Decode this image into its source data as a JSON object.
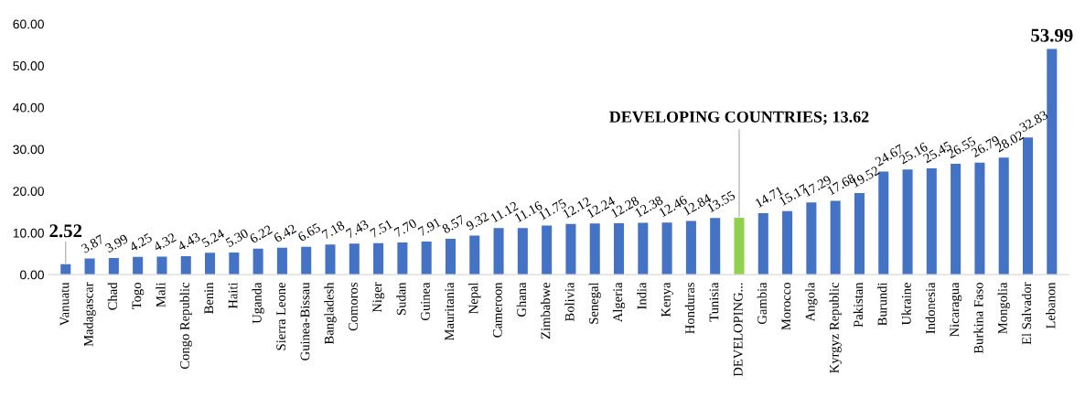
{
  "chart_data": {
    "type": "bar",
    "categories": [
      "Vanuatu",
      "Madagascar",
      "Chad",
      "Togo",
      "Mali",
      "Congo Republic",
      "Benin",
      "Haiti",
      "Uganda",
      "Sierra Leone",
      "Guinea-Bissau",
      "Bangladesh",
      "Comoros",
      "Niger",
      "Sudan",
      "Guinea",
      "Mauritania",
      "Nepal",
      "Cameroon",
      "Ghana",
      "Zimbabwe",
      "Bolivia",
      "Senegal",
      "Algeria",
      "India",
      "Kenya",
      "Honduras",
      "Tunisia",
      "DEVELOPING...",
      "Gambia",
      "Morocco",
      "Angola",
      "Kyrgyz Republic",
      "Pakistan",
      "Burundi",
      "Ukraine",
      "Indonesia",
      "Nicaragua",
      "Burkina Faso",
      "Mongolia",
      "El Salvador",
      "Lebanon"
    ],
    "values": [
      2.52,
      3.87,
      3.99,
      4.25,
      4.32,
      4.43,
      5.24,
      5.3,
      6.22,
      6.42,
      6.65,
      7.18,
      7.43,
      7.51,
      7.7,
      7.91,
      8.57,
      9.32,
      11.12,
      11.16,
      11.75,
      12.12,
      12.24,
      12.28,
      12.38,
      12.46,
      12.84,
      13.55,
      13.62,
      14.71,
      15.17,
      17.29,
      17.68,
      19.52,
      24.67,
      25.16,
      25.45,
      26.55,
      26.79,
      28.02,
      32.83,
      53.99
    ],
    "colors": [
      "#4472c4",
      "#4472c4",
      "#4472c4",
      "#4472c4",
      "#4472c4",
      "#4472c4",
      "#4472c4",
      "#4472c4",
      "#4472c4",
      "#4472c4",
      "#4472c4",
      "#4472c4",
      "#4472c4",
      "#4472c4",
      "#4472c4",
      "#4472c4",
      "#4472c4",
      "#4472c4",
      "#4472c4",
      "#4472c4",
      "#4472c4",
      "#4472c4",
      "#4472c4",
      "#4472c4",
      "#4472c4",
      "#4472c4",
      "#4472c4",
      "#4472c4",
      "#92d050",
      "#4472c4",
      "#4472c4",
      "#4472c4",
      "#4472c4",
      "#4472c4",
      "#4472c4",
      "#4472c4",
      "#4472c4",
      "#4472c4",
      "#4472c4",
      "#4472c4",
      "#4472c4",
      "#4472c4"
    ],
    "value_labels": [
      "2.52",
      "3.87",
      "3.99",
      "4.25",
      "4.32",
      "4.43",
      "5.24",
      "5.30",
      "6.22",
      "6.42",
      "6.65",
      "7.18",
      "7.43",
      "7.51",
      "7.70",
      "7.91",
      "8.57",
      "9.32",
      "11.12",
      "11.16",
      "11.75",
      "12.12",
      "12.24",
      "12.28",
      "12.38",
      "12.46",
      "12.84",
      "13.55",
      null,
      "14.71",
      "15.17",
      "17.29",
      "17.68",
      "19.52",
      "24.67",
      "25.16",
      "25.45",
      "26.55",
      "26.79",
      "28.02",
      "32.83",
      "53.99"
    ],
    "annotations": [
      {
        "text": "DEVELOPING COUNTRIES; 13.62",
        "x": "DEVELOPING...",
        "y": 13.62
      }
    ],
    "ylim": [
      0,
      60
    ],
    "yticks": [
      {
        "value": 0,
        "label": "0.00"
      },
      {
        "value": 10,
        "label": "10.00"
      },
      {
        "value": 20,
        "label": "20.00"
      },
      {
        "value": 30,
        "label": "30.00"
      },
      {
        "value": 40,
        "label": "40.00"
      },
      {
        "value": 50,
        "label": "50.00"
      },
      {
        "value": 60,
        "label": "60.00"
      }
    ],
    "grid": false,
    "legend": false
  }
}
